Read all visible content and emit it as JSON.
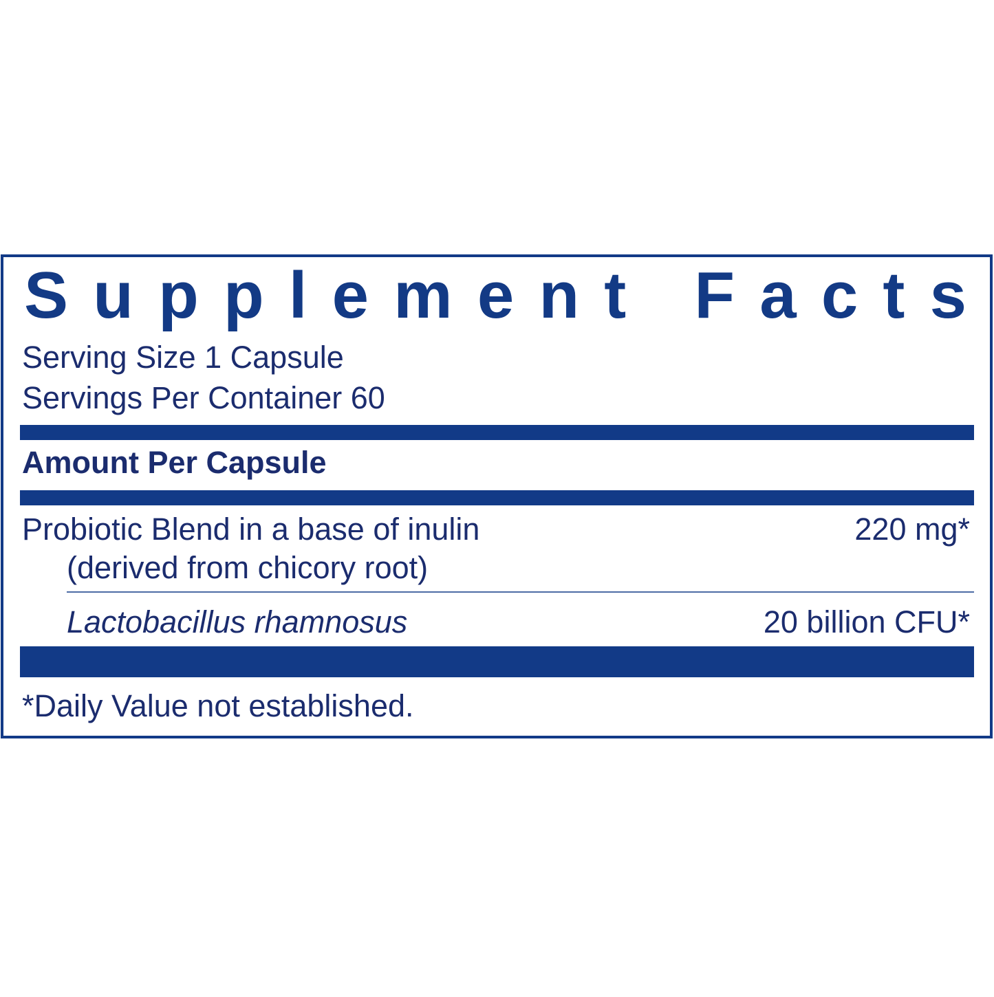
{
  "label": {
    "title": "Supplement Facts",
    "serving_size": "Serving Size 1 Capsule",
    "servings_per_container": "Servings Per Container 60",
    "amount_header": "Amount Per Capsule",
    "rows": [
      {
        "name": "Probiotic Blend in a base of inulin",
        "note": "(derived from chicory root)",
        "amount": "220 mg*"
      },
      {
        "name": "Lactobacillus rhamnosus",
        "amount": "20 billion CFU*"
      }
    ],
    "footnote": "*Daily Value not established."
  }
}
